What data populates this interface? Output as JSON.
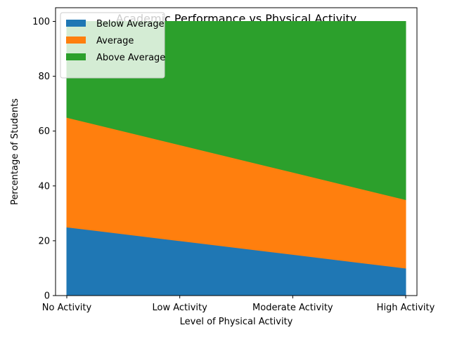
{
  "chart_data": {
    "type": "area",
    "stacked": true,
    "title": "Academic Performance vs Physical Activity",
    "xlabel": "Level of Physical Activity",
    "ylabel": "Percentage of Students",
    "categories": [
      "No Activity",
      "Low Activity",
      "Moderate Activity",
      "High Activity"
    ],
    "ylim": [
      0,
      105
    ],
    "yticks": [
      0,
      20,
      40,
      60,
      80,
      100
    ],
    "grid": false,
    "legend_position": "top-left",
    "series": [
      {
        "name": "Below Average",
        "values": [
          25,
          20,
          15,
          10
        ],
        "color": "#1f77b4"
      },
      {
        "name": "Average",
        "values": [
          40,
          35,
          30,
          25
        ],
        "color": "#ff7f0e"
      },
      {
        "name": "Above Average",
        "values": [
          35,
          45,
          55,
          65
        ],
        "color": "#2ca02c"
      }
    ]
  }
}
